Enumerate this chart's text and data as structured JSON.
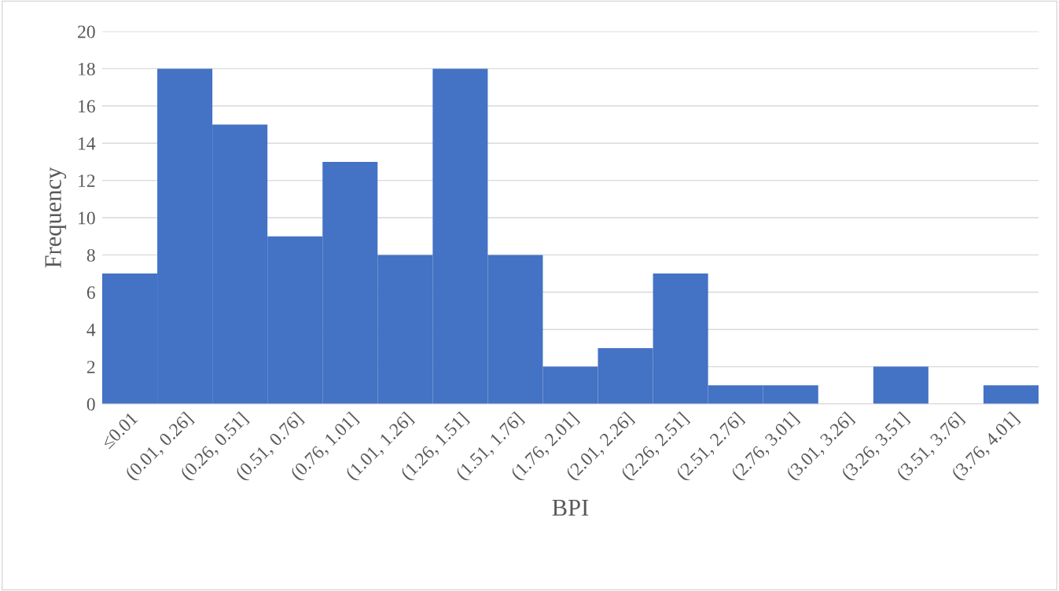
{
  "chart_data": {
    "type": "bar",
    "xlabel": "BPI",
    "ylabel": "Frequency",
    "categories": [
      "≤0.01",
      "(0.01, 0.26]",
      "(0.26, 0.51]",
      "(0.51, 0.76]",
      "(0.76, 1.01]",
      "(1.01, 1.26]",
      "(1.26, 1.51]",
      "(1.51, 1.76]",
      "(1.76, 2.01]",
      "(2.01, 2.26]",
      "(2.26, 2.51]",
      "(2.51, 2.76]",
      "(2.76, 3.01]",
      "(3.01, 3.26]",
      "(3.26, 3.51]",
      "(3.51, 3.76]",
      "(3.76, 4.01]"
    ],
    "values": [
      7,
      18,
      15,
      9,
      13,
      8,
      18,
      8,
      2,
      3,
      7,
      1,
      1,
      0,
      2,
      0,
      1
    ],
    "color": "#4472c4",
    "ylim": [
      0,
      20
    ],
    "yticks": [
      0,
      2,
      4,
      6,
      8,
      10,
      12,
      14,
      16,
      18,
      20
    ],
    "grid": "y"
  }
}
